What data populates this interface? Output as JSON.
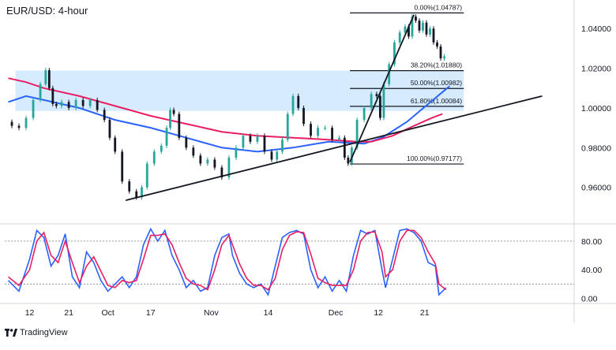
{
  "chart_data": {
    "type": "line",
    "title": "EUR/USD: 4-hour",
    "price_panel": {
      "y_ticks": [
        "1.04000",
        "1.02000",
        "1.00000",
        "0.98000",
        "0.96000"
      ],
      "y_tick_values": [
        1.04,
        1.02,
        1.0,
        0.98,
        0.96
      ],
      "ylim": [
        0.944,
        1.052
      ],
      "fib_levels": [
        {
          "label": "0.00%(1.04787)",
          "value": 1.04787
        },
        {
          "label": "38.20%(1.01880)",
          "value": 1.0188
        },
        {
          "label": "50.00%(1.00982)",
          "value": 1.00982
        },
        {
          "label": "61.80%(1.00084)",
          "value": 1.00084
        },
        {
          "label": "100.00%(0.97177)",
          "value": 0.97177
        }
      ],
      "resistance_zone": [
        0.9985,
        1.0188
      ],
      "series": [
        {
          "name": "",
          "color": "#2962ff",
          "values": [
            [
              0,
              1.003
            ],
            [
              5,
              1.006
            ],
            [
              10,
              1.004
            ],
            [
              20,
              1.0
            ],
            [
              30,
              0.994
            ],
            [
              40,
              0.99
            ],
            [
              50,
              0.985
            ],
            [
              60,
              0.98
            ],
            [
              70,
              0.978
            ],
            [
              80,
              0.98
            ],
            [
              90,
              0.983
            ],
            [
              100,
              0.982
            ],
            [
              105,
              0.985
            ],
            [
              112,
              0.993
            ],
            [
              118,
              1.002
            ],
            [
              122,
              1.008
            ],
            [
              124,
              1.011
            ]
          ]
        },
        {
          "name": "",
          "color": "#e91e63",
          "values": [
            [
              0,
              1.015
            ],
            [
              5,
              1.013
            ],
            [
              10,
              1.01
            ],
            [
              20,
              1.006
            ],
            [
              30,
              1.001
            ],
            [
              40,
              0.996
            ],
            [
              50,
              0.992
            ],
            [
              60,
              0.988
            ],
            [
              70,
              0.986
            ],
            [
              80,
              0.985
            ],
            [
              90,
              0.984
            ],
            [
              98,
              0.983
            ],
            [
              102,
              0.983
            ],
            [
              108,
              0.986
            ],
            [
              114,
              0.991
            ],
            [
              119,
              0.995
            ],
            [
              122,
              0.997
            ]
          ]
        }
      ],
      "price_path": [
        [
          0,
          0.993
        ],
        [
          2,
          0.991
        ],
        [
          4,
          0.99
        ],
        [
          6,
          0.995
        ],
        [
          8,
          1.004
        ],
        [
          10,
          1.012
        ],
        [
          11,
          1.019
        ],
        [
          12,
          1.01
        ],
        [
          13,
          1.002
        ],
        [
          14,
          1.001
        ],
        [
          16,
          1.003
        ],
        [
          18,
          1.0
        ],
        [
          20,
          1.004
        ],
        [
          22,
          1.001
        ],
        [
          24,
          1.004
        ],
        [
          26,
          0.999
        ],
        [
          28,
          0.994
        ],
        [
          29,
          0.985
        ],
        [
          31,
          0.978
        ],
        [
          33,
          0.963
        ],
        [
          35,
          0.958
        ],
        [
          37,
          0.955
        ],
        [
          38,
          0.96
        ],
        [
          40,
          0.972
        ],
        [
          42,
          0.978
        ],
        [
          44,
          0.981
        ],
        [
          45,
          0.99
        ],
        [
          46,
          0.999
        ],
        [
          47,
          0.997
        ],
        [
          49,
          0.985
        ],
        [
          51,
          0.98
        ],
        [
          53,
          0.976
        ],
        [
          55,
          0.972
        ],
        [
          57,
          0.974
        ],
        [
          59,
          0.97
        ],
        [
          61,
          0.965
        ],
        [
          63,
          0.975
        ],
        [
          65,
          0.98
        ],
        [
          67,
          0.986
        ],
        [
          69,
          0.983
        ],
        [
          71,
          0.986
        ],
        [
          73,
          0.978
        ],
        [
          75,
          0.974
        ],
        [
          76,
          0.978
        ],
        [
          78,
          0.984
        ],
        [
          79,
          0.997
        ],
        [
          81,
          1.006
        ],
        [
          82,
          1.0
        ],
        [
          84,
          0.992
        ],
        [
          86,
          0.986
        ],
        [
          88,
          0.99
        ],
        [
          90,
          0.99
        ],
        [
          92,
          0.984
        ],
        [
          94,
          0.985
        ],
        [
          95,
          0.975
        ],
        [
          96,
          0.972
        ],
        [
          97,
          0.98
        ],
        [
          99,
          0.994
        ],
        [
          101,
          1.0
        ],
        [
          103,
          1.007
        ],
        [
          104,
          1.006
        ],
        [
          105,
          0.995
        ],
        [
          106,
          1.012
        ],
        [
          108,
          1.022
        ],
        [
          109,
          1.033
        ],
        [
          111,
          1.038
        ],
        [
          112,
          1.041
        ],
        [
          113,
          1.036
        ],
        [
          114,
          1.046
        ],
        [
          115,
          1.044
        ],
        [
          116,
          1.039
        ],
        [
          117,
          1.043
        ],
        [
          118,
          1.037
        ],
        [
          119,
          1.04
        ],
        [
          120,
          1.033
        ],
        [
          121,
          1.031
        ],
        [
          122,
          1.025
        ],
        [
          123,
          1.026
        ]
      ],
      "trendlines": [
        {
          "from": [
            33,
            0.9535
          ],
          "to": [
            150,
            1.006
          ]
        },
        {
          "from": [
            96,
            0.9728
          ],
          "to": [
            114,
            1.047
          ]
        }
      ]
    },
    "stoch_panel": {
      "y_ticks": [
        "80.00",
        "40.00",
        "0.00"
      ],
      "y_tick_values": [
        80,
        40,
        0
      ],
      "ylim": [
        -5,
        103
      ],
      "dashed_levels": [
        80,
        20
      ],
      "series": [
        {
          "name": "",
          "color": "#2962ff",
          "values": [
            [
              0,
              25
            ],
            [
              3,
              10
            ],
            [
              6,
              55
            ],
            [
              8,
              95
            ],
            [
              10,
              85
            ],
            [
              12,
              45
            ],
            [
              14,
              60
            ],
            [
              16,
              90
            ],
            [
              18,
              30
            ],
            [
              20,
              15
            ],
            [
              22,
              65
            ],
            [
              24,
              50
            ],
            [
              26,
              25
            ],
            [
              28,
              10
            ],
            [
              30,
              20
            ],
            [
              32,
              30
            ],
            [
              34,
              15
            ],
            [
              36,
              30
            ],
            [
              38,
              75
            ],
            [
              40,
              97
            ],
            [
              42,
              80
            ],
            [
              44,
              95
            ],
            [
              46,
              60
            ],
            [
              48,
              40
            ],
            [
              50,
              15
            ],
            [
              52,
              25
            ],
            [
              54,
              10
            ],
            [
              56,
              15
            ],
            [
              58,
              60
            ],
            [
              60,
              85
            ],
            [
              62,
              90
            ],
            [
              63,
              60
            ],
            [
              65,
              35
            ],
            [
              67,
              20
            ],
            [
              69,
              15
            ],
            [
              71,
              20
            ],
            [
              73,
              5
            ],
            [
              75,
              45
            ],
            [
              77,
              85
            ],
            [
              79,
              92
            ],
            [
              81,
              95
            ],
            [
              83,
              90
            ],
            [
              85,
              40
            ],
            [
              87,
              15
            ],
            [
              89,
              30
            ],
            [
              91,
              10
            ],
            [
              93,
              25
            ],
            [
              95,
              10
            ],
            [
              97,
              60
            ],
            [
              99,
              95
            ],
            [
              101,
              90
            ],
            [
              103,
              95
            ],
            [
              105,
              40
            ],
            [
              106,
              15
            ],
            [
              108,
              55
            ],
            [
              110,
              95
            ],
            [
              112,
              97
            ],
            [
              114,
              92
            ],
            [
              116,
              80
            ],
            [
              118,
              50
            ],
            [
              120,
              45
            ],
            [
              121,
              5
            ],
            [
              123,
              15
            ]
          ]
        },
        {
          "name": "",
          "color": "#e91e63",
          "values": [
            [
              0,
              30
            ],
            [
              3,
              18
            ],
            [
              6,
              40
            ],
            [
              8,
              80
            ],
            [
              10,
              92
            ],
            [
              12,
              60
            ],
            [
              14,
              50
            ],
            [
              16,
              80
            ],
            [
              18,
              50
            ],
            [
              20,
              22
            ],
            [
              22,
              45
            ],
            [
              24,
              58
            ],
            [
              26,
              38
            ],
            [
              28,
              18
            ],
            [
              30,
              15
            ],
            [
              32,
              25
            ],
            [
              34,
              22
            ],
            [
              36,
              25
            ],
            [
              38,
              55
            ],
            [
              40,
              88
            ],
            [
              42,
              88
            ],
            [
              44,
              90
            ],
            [
              46,
              75
            ],
            [
              48,
              50
            ],
            [
              50,
              28
            ],
            [
              52,
              20
            ],
            [
              54,
              18
            ],
            [
              56,
              12
            ],
            [
              58,
              40
            ],
            [
              60,
              75
            ],
            [
              62,
              88
            ],
            [
              63,
              75
            ],
            [
              65,
              48
            ],
            [
              67,
              28
            ],
            [
              69,
              18
            ],
            [
              71,
              18
            ],
            [
              73,
              12
            ],
            [
              75,
              28
            ],
            [
              77,
              68
            ],
            [
              79,
              88
            ],
            [
              81,
              93
            ],
            [
              83,
              92
            ],
            [
              85,
              62
            ],
            [
              87,
              28
            ],
            [
              89,
              22
            ],
            [
              91,
              18
            ],
            [
              93,
              18
            ],
            [
              95,
              18
            ],
            [
              97,
              40
            ],
            [
              99,
              80
            ],
            [
              101,
              92
            ],
            [
              103,
              93
            ],
            [
              105,
              65
            ],
            [
              106,
              30
            ],
            [
              108,
              40
            ],
            [
              110,
              80
            ],
            [
              112,
              95
            ],
            [
              114,
              95
            ],
            [
              116,
              85
            ],
            [
              118,
              65
            ],
            [
              120,
              48
            ],
            [
              121,
              20
            ],
            [
              123,
              12
            ]
          ]
        }
      ]
    },
    "x_axis": {
      "tick_labels": [
        "12",
        "21",
        "Oct",
        "17",
        "Nov",
        "14",
        "Dec",
        "12",
        "21"
      ],
      "tick_positions": [
        6,
        17,
        28,
        40,
        57,
        73,
        92,
        104,
        117
      ],
      "xlim": [
        -1,
        159
      ]
    }
  },
  "branding": {
    "logo_text": "TradingView"
  }
}
